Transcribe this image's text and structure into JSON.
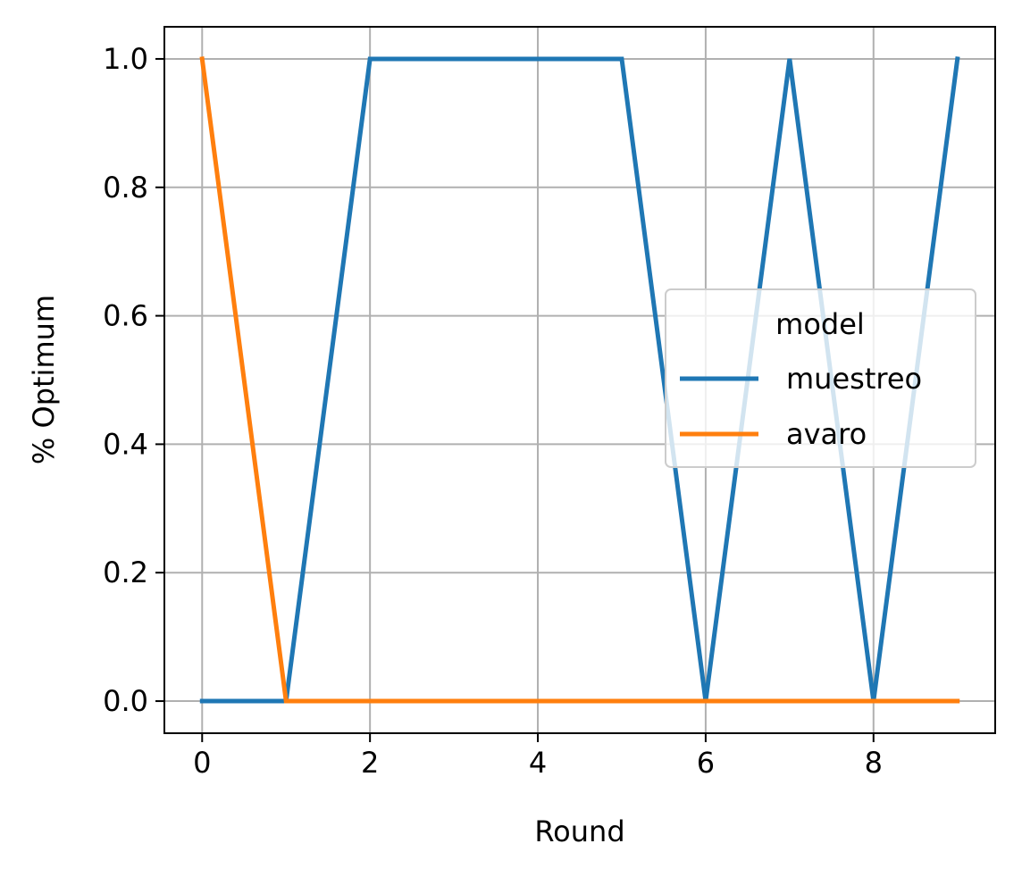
{
  "chart_data": {
    "type": "line",
    "title": "",
    "xlabel": "Round",
    "ylabel": "% Optimum",
    "xlim": [
      -0.45,
      9.45
    ],
    "ylim": [
      -0.05,
      1.05
    ],
    "xticks": [
      0,
      2,
      4,
      6,
      8
    ],
    "xtick_labels": [
      "0",
      "2",
      "4",
      "6",
      "8"
    ],
    "yticks": [
      0.0,
      0.2,
      0.4,
      0.6,
      0.8,
      1.0
    ],
    "ytick_labels": [
      "0.0",
      "0.2",
      "0.4",
      "0.6",
      "0.8",
      "1.0"
    ],
    "grid": true,
    "legend": {
      "title": "model",
      "placement": "center-right"
    },
    "x": [
      0,
      1,
      2,
      3,
      4,
      5,
      6,
      7,
      8,
      9
    ],
    "series": [
      {
        "name": "muestreo",
        "color": "#1f77b4",
        "values": [
          0,
          0,
          1,
          1,
          1,
          1,
          0,
          1,
          0,
          1
        ]
      },
      {
        "name": "avaro",
        "color": "#ff7f0e",
        "values": [
          1,
          0,
          0,
          0,
          0,
          0,
          0,
          0,
          0,
          0
        ]
      }
    ]
  }
}
